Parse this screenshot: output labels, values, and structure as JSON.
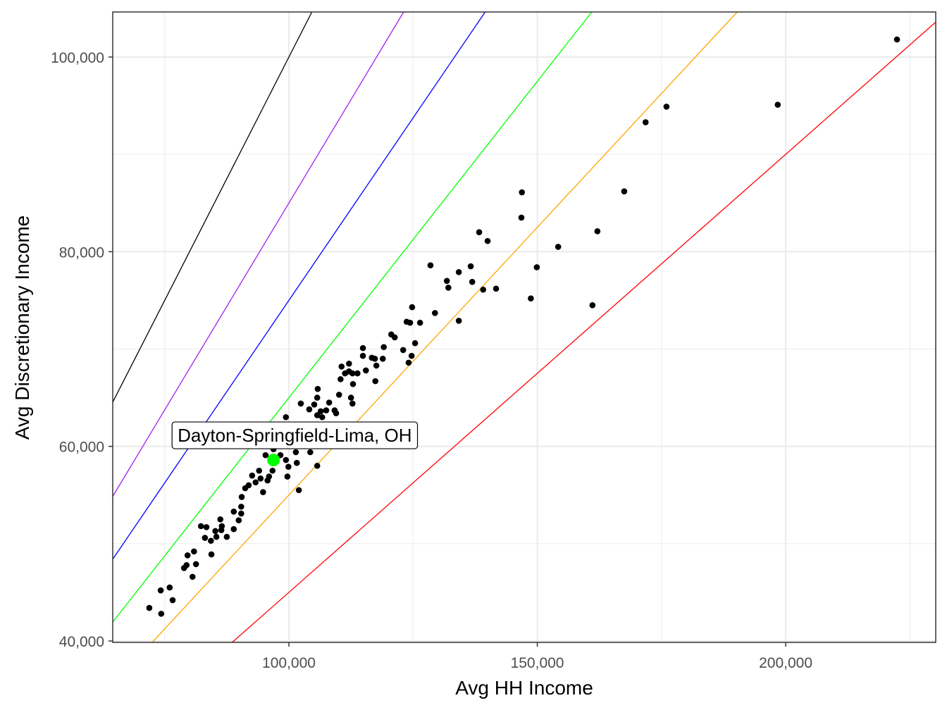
{
  "chart_data": {
    "type": "scatter",
    "xlabel": "Avg HH Income",
    "ylabel": "Avg Discretionary Income",
    "xlim": [
      64540,
      230200
    ],
    "ylim": [
      39860,
      104630
    ],
    "xticks": [
      100000,
      150000,
      200000
    ],
    "xtick_labels": [
      "100,000",
      "150,000",
      "200,000"
    ],
    "yticks": [
      40000,
      60000,
      80000,
      100000
    ],
    "ytick_labels": [
      "40,000",
      "60,000",
      "80,000",
      "100,000"
    ],
    "minor_xgrid": [
      75000,
      125000,
      175000,
      225000
    ],
    "minor_ygrid": [
      50000,
      70000,
      90000
    ],
    "grid": true,
    "point_color": "#000000",
    "reference_lines": [
      {
        "slope": 1.0,
        "color": "#000000"
      },
      {
        "slope": 0.85,
        "color": "#a020f0"
      },
      {
        "slope": 0.75,
        "color": "#0000ff"
      },
      {
        "slope": 0.65,
        "color": "#00ff00"
      },
      {
        "slope": 0.55,
        "color": "#ffa500"
      },
      {
        "slope": 0.45,
        "color": "#ff0000"
      }
    ],
    "highlight": {
      "label": "Dayton-Springfield-Lima, OH",
      "x": 96900,
      "y": 58600,
      "color": "#00ff00"
    },
    "points": [
      [
        71900,
        43400
      ],
      [
        74300,
        42800
      ],
      [
        74200,
        45200
      ],
      [
        76000,
        45500
      ],
      [
        76600,
        44200
      ],
      [
        79600,
        48800
      ],
      [
        80900,
        49200
      ],
      [
        78900,
        47500
      ],
      [
        79400,
        47800
      ],
      [
        81300,
        47900
      ],
      [
        80600,
        46600
      ],
      [
        84400,
        48900
      ],
      [
        82300,
        51800
      ],
      [
        83400,
        51700
      ],
      [
        83100,
        50600
      ],
      [
        84300,
        50300
      ],
      [
        85200,
        51300
      ],
      [
        85400,
        50700
      ],
      [
        86200,
        52500
      ],
      [
        86500,
        51800
      ],
      [
        86400,
        51400
      ],
      [
        87500,
        50700
      ],
      [
        88900,
        51500
      ],
      [
        88900,
        53300
      ],
      [
        90400,
        53800
      ],
      [
        90400,
        53100
      ],
      [
        89900,
        52400
      ],
      [
        90500,
        54800
      ],
      [
        91200,
        55700
      ],
      [
        91900,
        56000
      ],
      [
        92600,
        57000
      ],
      [
        93300,
        56300
      ],
      [
        94000,
        57500
      ],
      [
        94800,
        55300
      ],
      [
        94300,
        56700
      ],
      [
        95700,
        56500
      ],
      [
        96000,
        56900
      ],
      [
        96700,
        57500
      ],
      [
        95300,
        59100
      ],
      [
        96900,
        59700
      ],
      [
        98300,
        59100
      ],
      [
        99400,
        58600
      ],
      [
        99900,
        57900
      ],
      [
        99700,
        56900
      ],
      [
        101600,
        58300
      ],
      [
        101400,
        59400
      ],
      [
        104300,
        59400
      ],
      [
        105700,
        58000
      ],
      [
        102000,
        55500
      ],
      [
        124800,
        74300
      ],
      [
        129400,
        73700
      ],
      [
        123700,
        72800
      ],
      [
        124400,
        72700
      ],
      [
        126400,
        72700
      ],
      [
        120600,
        71500
      ],
      [
        121300,
        71200
      ],
      [
        125400,
        70600
      ],
      [
        119100,
        70200
      ],
      [
        123000,
        69900
      ],
      [
        114900,
        70100
      ],
      [
        114900,
        69300
      ],
      [
        116700,
        69100
      ],
      [
        117300,
        69000
      ],
      [
        118900,
        69000
      ],
      [
        124700,
        69300
      ],
      [
        124100,
        68600
      ],
      [
        110600,
        68200
      ],
      [
        112100,
        68500
      ],
      [
        111300,
        67500
      ],
      [
        112100,
        67700
      ],
      [
        112800,
        67500
      ],
      [
        113800,
        67500
      ],
      [
        115500,
        67800
      ],
      [
        117600,
        68300
      ],
      [
        110400,
        66900
      ],
      [
        112900,
        66400
      ],
      [
        117400,
        66700
      ],
      [
        105800,
        65900
      ],
      [
        105700,
        65000
      ],
      [
        110100,
        65300
      ],
      [
        112500,
        65000
      ],
      [
        112800,
        64400
      ],
      [
        102400,
        64400
      ],
      [
        108100,
        64500
      ],
      [
        105100,
        64300
      ],
      [
        104100,
        63800
      ],
      [
        106400,
        63600
      ],
      [
        107500,
        63700
      ],
      [
        109200,
        63700
      ],
      [
        109500,
        63400
      ],
      [
        105700,
        63200
      ],
      [
        106700,
        63000
      ],
      [
        99400,
        63000
      ],
      [
        128500,
        78600
      ],
      [
        131800,
        77000
      ],
      [
        132100,
        76300
      ],
      [
        134200,
        77900
      ],
      [
        134200,
        72900
      ],
      [
        136600,
        78500
      ],
      [
        136900,
        76900
      ],
      [
        138300,
        82000
      ],
      [
        139100,
        76100
      ],
      [
        140000,
        81100
      ],
      [
        141700,
        76200
      ],
      [
        146800,
        83500
      ],
      [
        146900,
        86100
      ],
      [
        148700,
        75200
      ],
      [
        149900,
        78400
      ],
      [
        154200,
        80500
      ],
      [
        161100,
        74500
      ],
      [
        162100,
        82100
      ],
      [
        167500,
        86200
      ],
      [
        171800,
        93300
      ],
      [
        176000,
        94900
      ],
      [
        198400,
        95100
      ],
      [
        222400,
        101800
      ]
    ]
  }
}
